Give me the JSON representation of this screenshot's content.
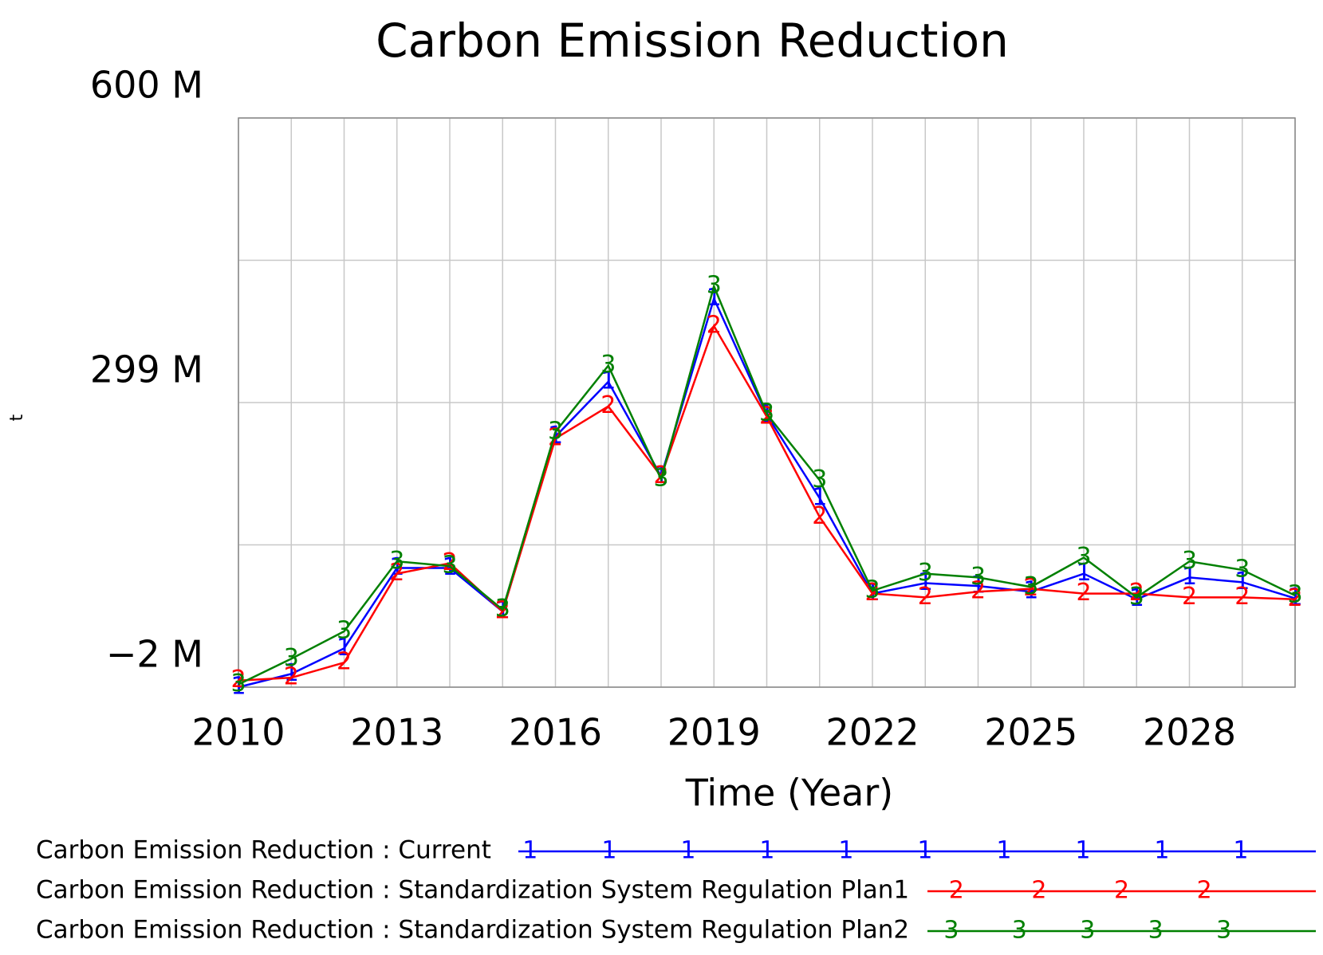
{
  "chart_data": {
    "type": "line",
    "title": "Carbon Emission Reduction",
    "xlabel": "Time (Year)",
    "ylabel": "t",
    "x": [
      2010,
      2011,
      2012,
      2013,
      2014,
      2015,
      2016,
      2017,
      2018,
      2019,
      2020,
      2021,
      2022,
      2023,
      2024,
      2025,
      2026,
      2027,
      2028,
      2029,
      2030
    ],
    "xlim": [
      2010,
      2030
    ],
    "xticks": [
      2010,
      2013,
      2016,
      2019,
      2022,
      2025,
      2028
    ],
    "ylim": [
      -2,
      600
    ],
    "yticks": [
      {
        "value": -2,
        "label": "−2 M"
      },
      {
        "value": 299,
        "label": "299 M"
      },
      {
        "value": 600,
        "label": "600 M"
      }
    ],
    "ygrid": [
      -2,
      148.5,
      299,
      449.5,
      600
    ],
    "grid": true,
    "series": [
      {
        "name": "Carbon Emission Reduction : Current",
        "marker": "1",
        "color": "#0000ff",
        "values": [
          -2,
          12,
          39,
          124,
          124,
          78,
          263,
          321,
          221,
          409,
          286,
          198,
          97,
          108,
          105,
          99,
          118,
          91,
          114,
          109,
          92
        ]
      },
      {
        "name": "Carbon Emission Reduction : Standardization System Regulation Plan1",
        "marker": "2",
        "color": "#ff0000",
        "values": [
          5,
          8,
          24,
          118,
          129,
          78,
          261,
          295,
          221,
          380,
          284,
          178,
          97,
          93,
          99,
          102,
          97,
          97,
          93,
          93,
          91
        ]
      },
      {
        "name": "Carbon Emission Reduction : Standardization System Regulation Plan2",
        "marker": "3",
        "color": "#008000",
        "values": [
          1,
          28,
          57,
          131,
          126,
          80,
          268,
          338,
          218,
          422,
          287,
          217,
          100,
          118,
          114,
          104,
          135,
          93,
          131,
          122,
          95
        ]
      }
    ]
  }
}
